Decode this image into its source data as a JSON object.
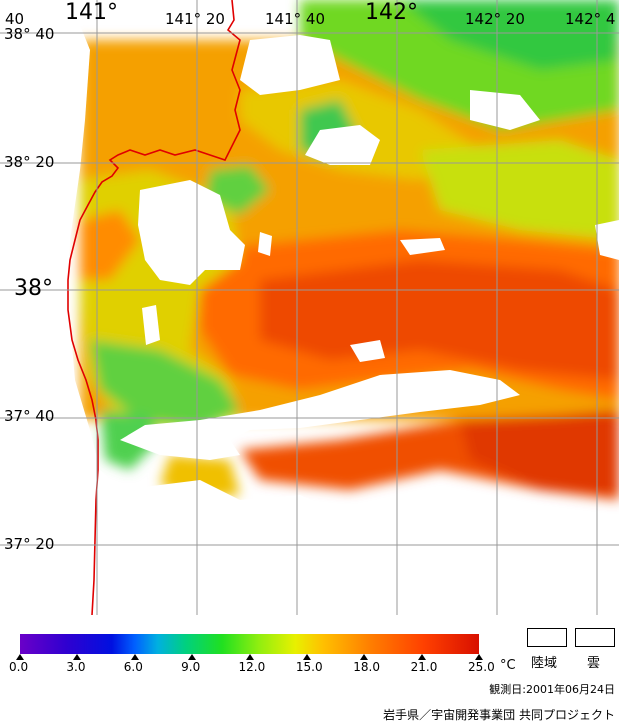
{
  "lat_labels": [
    {
      "text": "38° 40",
      "y": 38.6667
    },
    {
      "text": "38° 20",
      "y": 38.3333
    },
    {
      "text": "38°",
      "y": 38.0,
      "big": true
    },
    {
      "text": "37° 40",
      "y": 37.6667
    },
    {
      "text": "37° 20",
      "y": 37.3333
    }
  ],
  "lon_labels": [
    {
      "text": "141°",
      "x": 141.0,
      "big": true
    },
    {
      "text": "141° 20",
      "x": 141.3333
    },
    {
      "text": "141° 40",
      "x": 141.6667
    },
    {
      "text": "142°",
      "x": 142.0,
      "big": true
    },
    {
      "text": "142° 20",
      "x": 142.3333
    },
    {
      "text": "142° 4",
      "x": 142.6667
    }
  ],
  "corner_label": "40",
  "colorbar": {
    "ticks": [
      "0.0",
      "3.0",
      "6.0",
      "9.0",
      "12.0",
      "15.0",
      "18.0",
      "21.0",
      "25.0"
    ],
    "unit": "°C",
    "min": 0.0,
    "max": 25.0
  },
  "legend": {
    "land": "陸域",
    "cloud": "雲"
  },
  "observation_date": "観測日:2001年06月24日",
  "credit": "岩手県／宇宙開発事業団 共同プロジェクト",
  "colors": {
    "coastline": "#e00000",
    "grid": "#999999",
    "cloud_land": "#ffffff"
  }
}
